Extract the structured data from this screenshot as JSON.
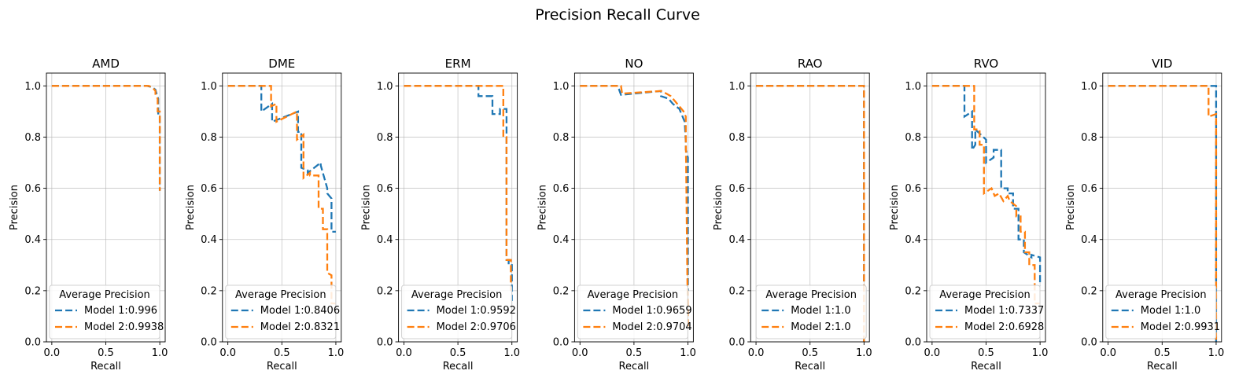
{
  "figure_title": "Precision Recall Curve",
  "colors": {
    "model1": "#1f77b4",
    "model2": "#ff7f0e"
  },
  "chart_data": [
    {
      "type": "line",
      "title": "AMD",
      "xlabel": "Recall",
      "ylabel": "Precision",
      "xlim": [
        -0.05,
        1.05
      ],
      "ylim": [
        0.0,
        1.05
      ],
      "grid": true,
      "xticks": [
        "0.0",
        "0.5",
        "1.0"
      ],
      "yticks": [
        "0.0",
        "0.2",
        "0.4",
        "0.6",
        "0.8",
        "1.0"
      ],
      "legend": {
        "title": "Average Precision",
        "position": "lower-left"
      },
      "series": [
        {
          "name": "Model 1:0.996",
          "x": [
            0.0,
            0.88,
            0.93,
            0.96,
            0.97,
            0.985,
            0.985,
            1.0,
            1.0
          ],
          "y": [
            1.0,
            1.0,
            0.995,
            0.985,
            0.97,
            0.95,
            0.88,
            0.88,
            0.59
          ]
        },
        {
          "name": "Model 2:0.9938",
          "x": [
            0.0,
            0.9,
            0.94,
            0.96,
            0.96,
            0.98,
            0.98,
            1.0,
            1.0
          ],
          "y": [
            1.0,
            1.0,
            0.99,
            0.98,
            0.965,
            0.95,
            0.9,
            0.9,
            0.59
          ]
        }
      ]
    },
    {
      "type": "line",
      "title": "DME",
      "xlabel": "Recall",
      "ylabel": "Precision",
      "xlim": [
        -0.05,
        1.05
      ],
      "ylim": [
        0.0,
        1.05
      ],
      "grid": true,
      "xticks": [
        "0.0",
        "0.5",
        "1.0"
      ],
      "yticks": [
        "0.0",
        "0.2",
        "0.4",
        "0.6",
        "0.8",
        "1.0"
      ],
      "legend": {
        "title": "Average Precision",
        "position": "lower-left"
      },
      "series": [
        {
          "name": "Model 1:0.8406",
          "x": [
            0.0,
            0.31,
            0.31,
            0.41,
            0.41,
            0.65,
            0.65,
            0.68,
            0.68,
            0.74,
            0.74,
            0.86,
            0.86,
            0.92,
            0.92,
            0.96,
            0.96,
            1.0
          ],
          "y": [
            1.0,
            1.0,
            0.9,
            0.93,
            0.86,
            0.9,
            0.82,
            0.82,
            0.68,
            0.67,
            0.66,
            0.7,
            0.69,
            0.6,
            0.58,
            0.56,
            0.43,
            0.43
          ]
        },
        {
          "name": "Model 2:0.8321",
          "x": [
            0.0,
            0.4,
            0.4,
            0.45,
            0.45,
            0.64,
            0.64,
            0.7,
            0.7,
            0.76,
            0.76,
            0.84,
            0.84,
            0.88,
            0.88,
            0.92,
            0.92,
            0.96,
            0.96,
            1.0
          ],
          "y": [
            1.0,
            1.0,
            0.92,
            0.93,
            0.86,
            0.9,
            0.79,
            0.81,
            0.64,
            0.66,
            0.65,
            0.65,
            0.52,
            0.52,
            0.44,
            0.44,
            0.27,
            0.26,
            0.15,
            0.15
          ]
        }
      ]
    },
    {
      "type": "line",
      "title": "ERM",
      "xlabel": "Recall",
      "ylabel": "Precision",
      "xlim": [
        -0.05,
        1.05
      ],
      "ylim": [
        0.0,
        1.05
      ],
      "grid": true,
      "xticks": [
        "0.0",
        "0.5",
        "1.0"
      ],
      "yticks": [
        "0.0",
        "0.2",
        "0.4",
        "0.6",
        "0.8",
        "1.0"
      ],
      "legend": {
        "title": "Average Precision",
        "position": "lower-left"
      },
      "series": [
        {
          "name": "Model 1:0.9592",
          "x": [
            0.0,
            0.69,
            0.69,
            0.82,
            0.82,
            0.89,
            0.89,
            0.95,
            0.95,
            0.97,
            0.97,
            1.0,
            1.0
          ],
          "y": [
            1.0,
            1.0,
            0.96,
            0.96,
            0.89,
            0.89,
            0.91,
            0.91,
            0.32,
            0.32,
            0.3,
            0.3,
            0.16
          ]
        },
        {
          "name": "Model 2:0.9706",
          "x": [
            0.0,
            0.92,
            0.92,
            0.95,
            0.95,
            0.99,
            0.99
          ],
          "y": [
            1.0,
            1.0,
            0.8,
            0.8,
            0.32,
            0.32,
            0.2
          ]
        }
      ]
    },
    {
      "type": "line",
      "title": "NO",
      "xlabel": "Recall",
      "ylabel": "Precision",
      "xlim": [
        -0.05,
        1.05
      ],
      "ylim": [
        0.0,
        1.05
      ],
      "grid": true,
      "xticks": [
        "0.0",
        "0.5",
        "1.0"
      ],
      "yticks": [
        "0.0",
        "0.2",
        "0.4",
        "0.6",
        "0.8",
        "1.0"
      ],
      "legend": {
        "title": "Average Precision",
        "position": "lower-left"
      },
      "series": [
        {
          "name": "Model 1:0.9659",
          "x": [
            0.0,
            0.35,
            0.38,
            0.75,
            0.75,
            0.82,
            0.86,
            0.89,
            0.92,
            0.95,
            0.97,
            0.98,
            0.98,
            1.0,
            1.0
          ],
          "y": [
            1.0,
            1.0,
            0.965,
            0.98,
            0.96,
            0.95,
            0.93,
            0.92,
            0.91,
            0.88,
            0.86,
            0.78,
            0.75,
            0.72,
            0.2
          ]
        },
        {
          "name": "Model 2:0.9704",
          "x": [
            0.0,
            0.38,
            0.39,
            0.75,
            0.8,
            0.84,
            0.88,
            0.92,
            0.96,
            0.98,
            0.98,
            1.0
          ],
          "y": [
            1.0,
            1.0,
            0.97,
            0.98,
            0.97,
            0.96,
            0.94,
            0.92,
            0.9,
            0.88,
            0.8,
            0.05
          ]
        }
      ]
    },
    {
      "type": "line",
      "title": "RAO",
      "xlabel": "Recall",
      "ylabel": "Precision",
      "xlim": [
        -0.05,
        1.05
      ],
      "ylim": [
        0.0,
        1.05
      ],
      "grid": true,
      "xticks": [
        "0.0",
        "0.5",
        "1.0"
      ],
      "yticks": [
        "0.0",
        "0.2",
        "0.4",
        "0.6",
        "0.8",
        "1.0"
      ],
      "legend": {
        "title": "Average Precision",
        "position": "lower-right"
      },
      "series": [
        {
          "name": "Model 1:1.0",
          "x": [
            0.0,
            1.0,
            1.0
          ],
          "y": [
            1.0,
            1.0,
            0.0
          ]
        },
        {
          "name": "Model 2:1.0",
          "x": [
            0.0,
            1.0,
            1.0
          ],
          "y": [
            1.0,
            1.0,
            0.0
          ]
        }
      ]
    },
    {
      "type": "line",
      "title": "RVO",
      "xlabel": "Recall",
      "ylabel": "Precision",
      "xlim": [
        -0.05,
        1.05
      ],
      "ylim": [
        0.0,
        1.05
      ],
      "grid": true,
      "xticks": [
        "0.0",
        "0.5",
        "1.0"
      ],
      "yticks": [
        "0.0",
        "0.2",
        "0.4",
        "0.6",
        "0.8",
        "1.0"
      ],
      "legend": {
        "title": "Average Precision",
        "position": "lower-left"
      },
      "series": [
        {
          "name": "Model 1:0.7337",
          "x": [
            0.0,
            0.3,
            0.3,
            0.37,
            0.37,
            0.4,
            0.4,
            0.5,
            0.5,
            0.57,
            0.57,
            0.64,
            0.64,
            0.7,
            0.7,
            0.75,
            0.75,
            0.8,
            0.8,
            0.85,
            0.85,
            0.92,
            0.92,
            1.0,
            1.0
          ],
          "y": [
            1.0,
            1.0,
            0.88,
            0.9,
            0.75,
            0.77,
            0.83,
            0.79,
            0.7,
            0.72,
            0.75,
            0.75,
            0.6,
            0.6,
            0.58,
            0.58,
            0.52,
            0.52,
            0.4,
            0.4,
            0.35,
            0.33,
            0.34,
            0.33,
            0.22
          ]
        },
        {
          "name": "Model 2:0.6928",
          "x": [
            0.0,
            0.39,
            0.39,
            0.44,
            0.44,
            0.48,
            0.48,
            0.55,
            0.58,
            0.62,
            0.66,
            0.7,
            0.72,
            0.78,
            0.78,
            0.82,
            0.82,
            0.86,
            0.86,
            0.9,
            0.9,
            0.95,
            0.95,
            1.0
          ],
          "y": [
            1.0,
            1.0,
            0.83,
            0.83,
            0.77,
            0.77,
            0.58,
            0.6,
            0.57,
            0.58,
            0.55,
            0.57,
            0.55,
            0.53,
            0.49,
            0.49,
            0.43,
            0.43,
            0.35,
            0.35,
            0.3,
            0.3,
            0.15,
            0.15
          ]
        }
      ]
    },
    {
      "type": "line",
      "title": "VID",
      "xlabel": "Recall",
      "ylabel": "Precision",
      "xlim": [
        -0.05,
        1.05
      ],
      "ylim": [
        0.0,
        1.05
      ],
      "grid": true,
      "xticks": [
        "0.0",
        "0.5",
        "1.0"
      ],
      "yticks": [
        "0.0",
        "0.2",
        "0.4",
        "0.6",
        "0.8",
        "1.0"
      ],
      "legend": {
        "title": "Average Precision",
        "position": "lower-left"
      },
      "series": [
        {
          "name": "Model 1:1.0",
          "x": [
            0.0,
            1.0,
            1.0
          ],
          "y": [
            1.0,
            1.0,
            0.0
          ]
        },
        {
          "name": "Model 2:0.9931",
          "x": [
            0.0,
            0.93,
            0.93,
            1.0,
            1.0
          ],
          "y": [
            1.0,
            1.0,
            0.88,
            0.89,
            0.0
          ]
        }
      ]
    }
  ]
}
